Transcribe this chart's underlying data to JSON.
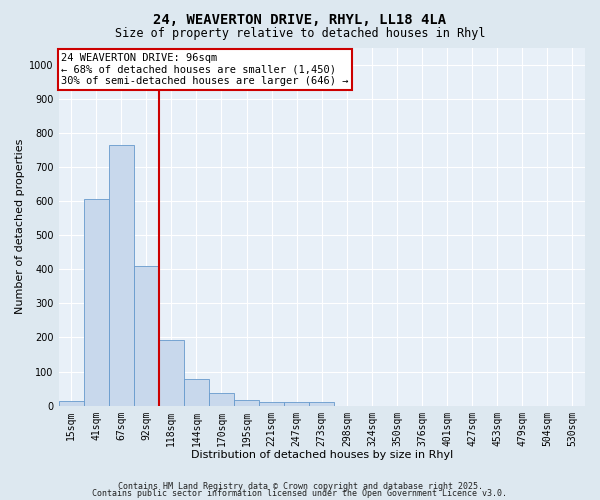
{
  "title_line1": "24, WEAVERTON DRIVE, RHYL, LL18 4LA",
  "title_line2": "Size of property relative to detached houses in Rhyl",
  "xlabel": "Distribution of detached houses by size in Rhyl",
  "ylabel": "Number of detached properties",
  "bar_labels": [
    "15sqm",
    "41sqm",
    "67sqm",
    "92sqm",
    "118sqm",
    "144sqm",
    "170sqm",
    "195sqm",
    "221sqm",
    "247sqm",
    "273sqm",
    "298sqm",
    "324sqm",
    "350sqm",
    "376sqm",
    "401sqm",
    "427sqm",
    "453sqm",
    "479sqm",
    "504sqm",
    "530sqm"
  ],
  "bar_values": [
    15,
    605,
    765,
    410,
    192,
    78,
    37,
    18,
    12,
    10,
    10,
    0,
    0,
    0,
    0,
    0,
    0,
    0,
    0,
    0,
    0
  ],
  "bar_color": "#c8d8ec",
  "bar_edge_color": "#6699cc",
  "vline_color": "#cc0000",
  "vline_position": 3.5,
  "ylim": [
    0,
    1050
  ],
  "yticks": [
    0,
    100,
    200,
    300,
    400,
    500,
    600,
    700,
    800,
    900,
    1000
  ],
  "annotation_text": "24 WEAVERTON DRIVE: 96sqm\n← 68% of detached houses are smaller (1,450)\n30% of semi-detached houses are larger (646) →",
  "annotation_box_facecolor": "#ffffff",
  "annotation_box_edgecolor": "#cc0000",
  "footer_line1": "Contains HM Land Registry data © Crown copyright and database right 2025.",
  "footer_line2": "Contains public sector information licensed under the Open Government Licence v3.0.",
  "bg_color": "#dde8f0",
  "plot_bg_color": "#e8f0f8",
  "grid_color": "#ffffff",
  "title_fontsize": 10,
  "subtitle_fontsize": 8.5,
  "tick_fontsize": 7,
  "axis_label_fontsize": 8,
  "annotation_fontsize": 7.5,
  "footer_fontsize": 6
}
